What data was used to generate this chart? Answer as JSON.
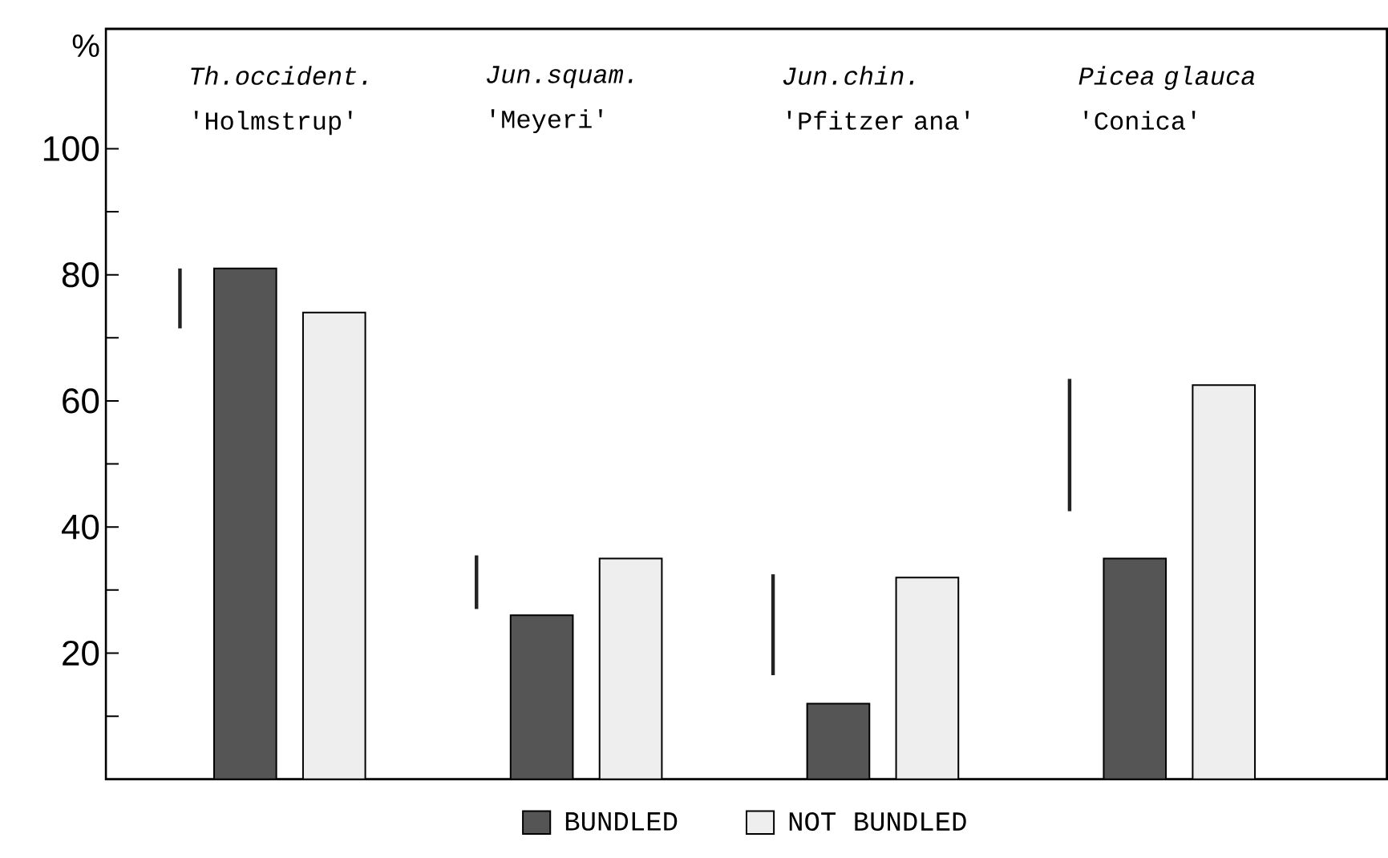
{
  "chart_data": {
    "type": "bar",
    "ylabel": "%",
    "categories": [
      "*Th.occident.* 'Holmstrup'",
      "*Jun.squam.* 'Meyeri'",
      "*Jun.chin.* 'Pfitzer ana'",
      "*Picea glauca* 'Conica'"
    ],
    "series": [
      {
        "color": "#222222",
        "base": [
          71.5,
          27,
          16.5,
          42.5
        ],
        "values": [
          9.5,
          8.5,
          16,
          21
        ]
      },
      {
        "name": "BUNDLED",
        "color": "#555555",
        "values": [
          81,
          26,
          12,
          35
        ]
      },
      {
        "name": "NOT BUNDLED",
        "color": "#eeeeee",
        "values": [
          74,
          35,
          32,
          62.5
        ]
      }
    ],
    "ylim": [
      0,
      119
    ],
    "yticks": [
      {
        "value": 10,
        "label": null
      },
      20,
      {
        "value": 30,
        "label": null
      },
      40,
      {
        "value": 50,
        "label": null
      },
      60,
      {
        "value": 70,
        "label": null
      },
      80,
      {
        "value": 90,
        "label": null
      },
      100
    ],
    "grid": false,
    "legend": "bottom"
  }
}
